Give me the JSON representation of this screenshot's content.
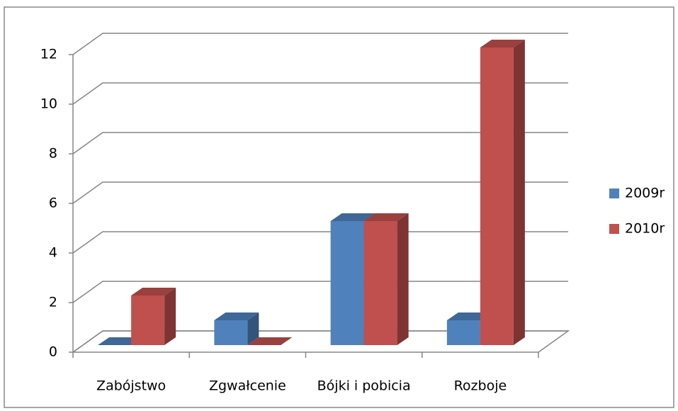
{
  "chart_data": {
    "type": "bar3d",
    "categories": [
      "Zabójstwo",
      "Zgwałcenie",
      "Bójki i pobicia",
      "Rozboje"
    ],
    "series": [
      {
        "name": "2009r",
        "color": "#4f81bd",
        "values": [
          0,
          1,
          5,
          1
        ]
      },
      {
        "name": "2010r",
        "color": "#c0504d",
        "values": [
          2,
          0,
          5,
          12
        ]
      }
    ],
    "ylim": [
      0,
      12
    ],
    "yticks": [
      0,
      2,
      4,
      6,
      8,
      10,
      12
    ],
    "grid": true,
    "legend": "right"
  }
}
